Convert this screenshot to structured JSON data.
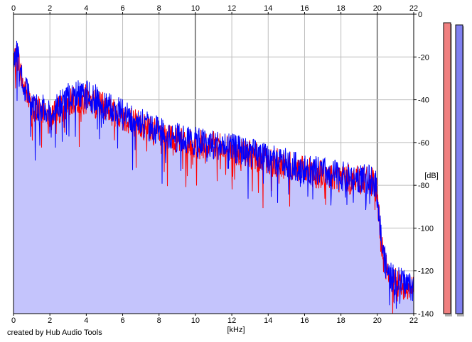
{
  "credit": "created by Hub Audio Tools",
  "colors": {
    "grid": "#bdbdbd",
    "grid_major": "#8a8a8a",
    "fill": "#c4c4fc",
    "left_channel": "#ff0000",
    "right_channel": "#0000ff",
    "meter_left": "#f08080",
    "meter_right": "#8080f0"
  },
  "chart_data": {
    "type": "line",
    "title": "",
    "xlabel": "[kHz]",
    "ylabel": "[dB]",
    "xlim": [
      0,
      22
    ],
    "ylim": [
      -140,
      0
    ],
    "x_ticks": [
      0,
      2,
      4,
      6,
      8,
      10,
      12,
      14,
      16,
      18,
      20,
      22
    ],
    "x_major_ticks": [
      10,
      20
    ],
    "y_ticks": [
      0,
      -20,
      -40,
      -60,
      -80,
      -100,
      -120,
      -140
    ],
    "grid": true,
    "legend": "none",
    "fill_under": true,
    "series": [
      {
        "color": "#ff0000",
        "x": [
          0,
          0.2,
          0.5,
          0.8,
          1.0,
          1.5,
          2.0,
          2.5,
          3.0,
          3.5,
          4.0,
          4.5,
          5.0,
          6.0,
          7.0,
          8.0,
          9.0,
          10.0,
          11.0,
          12.0,
          13.0,
          14.0,
          15.0,
          16.0,
          17.0,
          18.0,
          19.0,
          19.8,
          20.0,
          20.1,
          20.3,
          20.6,
          21.0,
          21.5,
          22.0
        ],
        "values": [
          -25,
          -18,
          -32,
          -38,
          -45,
          -43,
          -46,
          -44,
          -41,
          -40,
          -39,
          -41,
          -43,
          -47,
          -51,
          -55,
          -58,
          -60,
          -61,
          -63,
          -65,
          -68,
          -70,
          -73,
          -74,
          -76,
          -77,
          -78,
          -82,
          -95,
          -112,
          -122,
          -125,
          -126,
          -128
        ]
      },
      {
        "color": "#0000ff",
        "x": [
          0,
          0.2,
          0.5,
          0.8,
          1.0,
          1.5,
          2.0,
          2.5,
          3.0,
          3.5,
          4.0,
          4.5,
          5.0,
          6.0,
          7.0,
          8.0,
          9.0,
          10.0,
          11.0,
          12.0,
          13.0,
          14.0,
          15.0,
          16.0,
          17.0,
          18.0,
          19.0,
          19.8,
          20.0,
          20.1,
          20.3,
          20.6,
          21.0,
          21.5,
          22.0
        ],
        "values": [
          -24,
          -17,
          -31,
          -37,
          -44,
          -42,
          -44,
          -42,
          -38,
          -37,
          -37,
          -39,
          -42,
          -46,
          -50,
          -54,
          -57,
          -59,
          -60,
          -62,
          -64,
          -67,
          -69,
          -72,
          -73,
          -75,
          -76,
          -77,
          -81,
          -94,
          -111,
          -121,
          -124,
          -125,
          -127
        ]
      }
    ],
    "meters": [
      {
        "color": "#f08080",
        "top_db": -4
      },
      {
        "color": "#8080f0",
        "top_db": -5
      }
    ]
  }
}
